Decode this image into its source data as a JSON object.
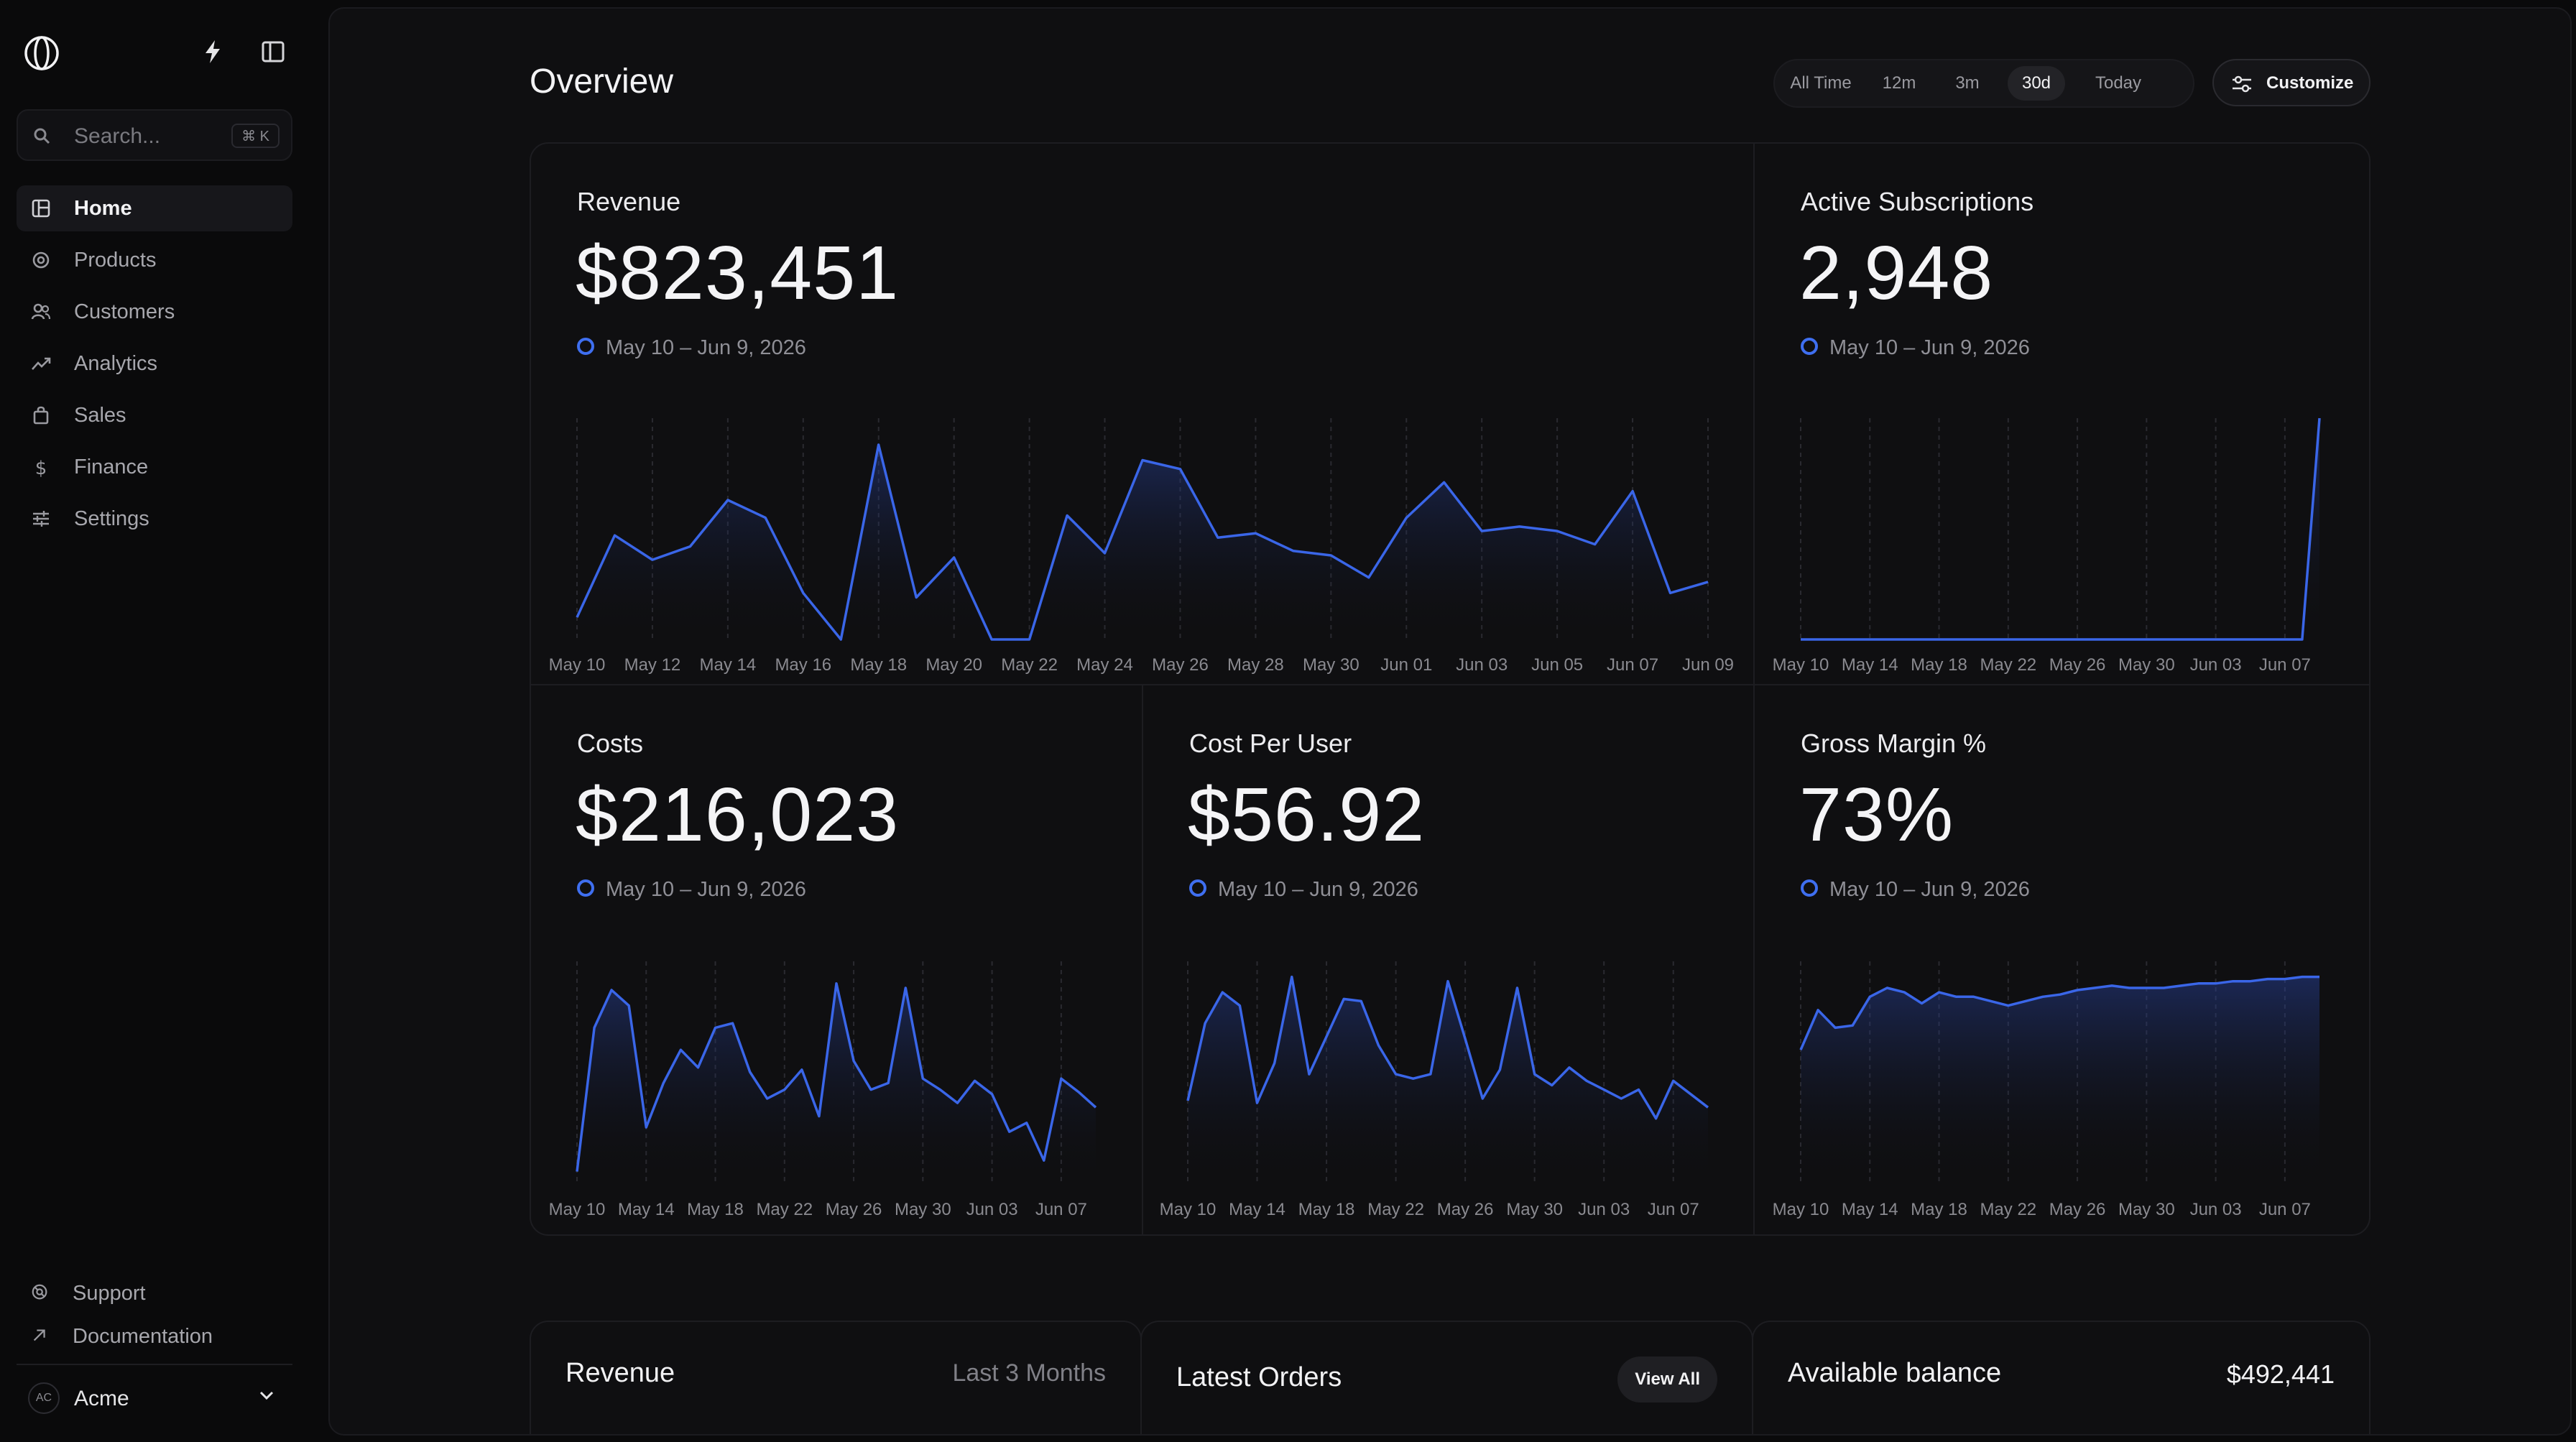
{
  "sidebar": {
    "search_placeholder": "Search...",
    "search_shortcut": "⌘ K",
    "nav": [
      {
        "label": "Home",
        "icon": "home-icon",
        "active": true
      },
      {
        "label": "Products",
        "icon": "products-icon"
      },
      {
        "label": "Customers",
        "icon": "customers-icon"
      },
      {
        "label": "Analytics",
        "icon": "analytics-icon"
      },
      {
        "label": "Sales",
        "icon": "sales-icon"
      },
      {
        "label": "Finance",
        "icon": "finance-icon"
      },
      {
        "label": "Settings",
        "icon": "settings-icon"
      }
    ],
    "footer": [
      {
        "label": "Support",
        "icon": "support-icon"
      },
      {
        "label": "Documentation",
        "icon": "arrow-up-right-icon"
      }
    ],
    "workspace": {
      "initials": "AC",
      "name": "Acme"
    }
  },
  "header": {
    "title": "Overview",
    "timeframes": [
      "All Time",
      "12m",
      "3m",
      "30d",
      "Today"
    ],
    "active_timeframe": "30d",
    "customize_label": "Customize"
  },
  "colors": {
    "accent": "#3f6ff0",
    "line": "#3a66e8",
    "background": "#0f0f11"
  },
  "metrics": {
    "revenue": {
      "title": "Revenue",
      "value": "$823,451",
      "range": "May 10 – Jun 9, 2026"
    },
    "subscriptions": {
      "title": "Active Subscriptions",
      "value": "2,948",
      "range": "May 10 – Jun 9, 2026"
    },
    "costs": {
      "title": "Costs",
      "value": "$216,023",
      "range": "May 10 – Jun 9, 2026"
    },
    "cost_per_user": {
      "title": "Cost Per User",
      "value": "$56.92",
      "range": "May 10 – Jun 9, 2026"
    },
    "gross_margin": {
      "title": "Gross Margin %",
      "value": "73%",
      "range": "May 10 – Jun 9, 2026"
    }
  },
  "chart_data": [
    {
      "id": "revenue",
      "type": "area",
      "x": [
        "May 10",
        "May 11",
        "May 12",
        "May 13",
        "May 14",
        "May 15",
        "May 16",
        "May 17",
        "May 18",
        "May 19",
        "May 20",
        "May 21",
        "May 22",
        "May 23",
        "May 24",
        "May 25",
        "May 26",
        "May 27",
        "May 28",
        "May 29",
        "May 30",
        "May 31",
        "Jun 01",
        "Jun 02",
        "Jun 03",
        "Jun 04",
        "Jun 05",
        "Jun 06",
        "Jun 07",
        "Jun 08",
        "Jun 09"
      ],
      "tick_labels": [
        "May 10",
        "May 12",
        "May 14",
        "May 16",
        "May 18",
        "May 20",
        "May 22",
        "May 24",
        "May 26",
        "May 28",
        "May 30",
        "Jun 01",
        "Jun 03",
        "Jun 05",
        "Jun 07",
        "Jun 09"
      ],
      "values": [
        10,
        47,
        36,
        42,
        63,
        55,
        21,
        0,
        88,
        19,
        37,
        0,
        0,
        56,
        39,
        81,
        77,
        46,
        48,
        40,
        38,
        28,
        55,
        71,
        49,
        51,
        49,
        43,
        67,
        21,
        26
      ]
    },
    {
      "id": "subscriptions",
      "type": "area",
      "x": [
        "May 10",
        "May 11",
        "May 12",
        "May 13",
        "May 14",
        "May 15",
        "May 16",
        "May 17",
        "May 18",
        "May 19",
        "May 20",
        "May 21",
        "May 22",
        "May 23",
        "May 24",
        "May 25",
        "May 26",
        "May 27",
        "May 28",
        "May 29",
        "May 30",
        "May 31",
        "Jun 01",
        "Jun 02",
        "Jun 03",
        "Jun 04",
        "Jun 05",
        "Jun 06",
        "Jun 07",
        "Jun 08",
        "Jun 09"
      ],
      "tick_labels": [
        "May 10",
        "May 14",
        "May 18",
        "May 22",
        "May 26",
        "May 30",
        "Jun 03",
        "Jun 07"
      ],
      "values": [
        0,
        0,
        0,
        0,
        0,
        0,
        0,
        0,
        0,
        0,
        0,
        0,
        0,
        0,
        0,
        0,
        0,
        0,
        0,
        0,
        0,
        0,
        0,
        0,
        0,
        0,
        0,
        0,
        0,
        0,
        100
      ]
    },
    {
      "id": "costs",
      "type": "area",
      "x": [
        "May 10",
        "May 11",
        "May 12",
        "May 13",
        "May 14",
        "May 15",
        "May 16",
        "May 17",
        "May 18",
        "May 19",
        "May 20",
        "May 21",
        "May 22",
        "May 23",
        "May 24",
        "May 25",
        "May 26",
        "May 27",
        "May 28",
        "May 29",
        "May 30",
        "May 31",
        "Jun 01",
        "Jun 02",
        "Jun 03",
        "Jun 04",
        "Jun 05",
        "Jun 06",
        "Jun 07",
        "Jun 08",
        "Jun 09"
      ],
      "tick_labels": [
        "May 10",
        "May 14",
        "May 18",
        "May 22",
        "May 26",
        "May 30",
        "Jun 03",
        "Jun 07"
      ],
      "values": [
        5,
        70,
        87,
        80,
        25,
        45,
        60,
        52,
        70,
        72,
        50,
        38,
        42,
        51,
        30,
        90,
        55,
        42,
        45,
        88,
        47,
        42,
        36,
        46,
        40,
        23,
        27,
        10,
        47,
        41,
        34
      ]
    },
    {
      "id": "cost_per_user",
      "type": "area",
      "x": [
        "May 10",
        "May 11",
        "May 12",
        "May 13",
        "May 14",
        "May 15",
        "May 16",
        "May 17",
        "May 18",
        "May 19",
        "May 20",
        "May 21",
        "May 22",
        "May 23",
        "May 24",
        "May 25",
        "May 26",
        "May 27",
        "May 28",
        "May 29",
        "May 30",
        "May 31",
        "Jun 01",
        "Jun 02",
        "Jun 03",
        "Jun 04",
        "Jun 05",
        "Jun 06",
        "Jun 07",
        "Jun 08",
        "Jun 09"
      ],
      "tick_labels": [
        "May 10",
        "May 14",
        "May 18",
        "May 22",
        "May 26",
        "May 30",
        "Jun 03",
        "Jun 07"
      ],
      "values": [
        37,
        72,
        86,
        80,
        36,
        54,
        93,
        49,
        66,
        83,
        82,
        62,
        49,
        47,
        49,
        91,
        65,
        38,
        51,
        88,
        49,
        44,
        52,
        46,
        42,
        38,
        42,
        29,
        46,
        40,
        34
      ]
    },
    {
      "id": "gross_margin",
      "type": "area",
      "x": [
        "May 10",
        "May 11",
        "May 12",
        "May 13",
        "May 14",
        "May 15",
        "May 16",
        "May 17",
        "May 18",
        "May 19",
        "May 20",
        "May 21",
        "May 22",
        "May 23",
        "May 24",
        "May 25",
        "May 26",
        "May 27",
        "May 28",
        "May 29",
        "May 30",
        "May 31",
        "Jun 01",
        "Jun 02",
        "Jun 03",
        "Jun 04",
        "Jun 05",
        "Jun 06",
        "Jun 07",
        "Jun 08",
        "Jun 09"
      ],
      "tick_labels": [
        "May 10",
        "May 14",
        "May 18",
        "May 22",
        "May 26",
        "May 30",
        "Jun 03",
        "Jun 07"
      ],
      "values": [
        60,
        78,
        70,
        71,
        84,
        88,
        86,
        81,
        86,
        84,
        84,
        82,
        80,
        82,
        84,
        85,
        87,
        88,
        89,
        88,
        88,
        88,
        89,
        90,
        90,
        91,
        91,
        92,
        92,
        93,
        93
      ]
    }
  ],
  "bottom": {
    "revenue": {
      "title": "Revenue",
      "period": "Last 3 Months"
    },
    "orders": {
      "title": "Latest Orders",
      "button": "View All"
    },
    "balance": {
      "title": "Available balance",
      "value": "$492,441"
    }
  }
}
